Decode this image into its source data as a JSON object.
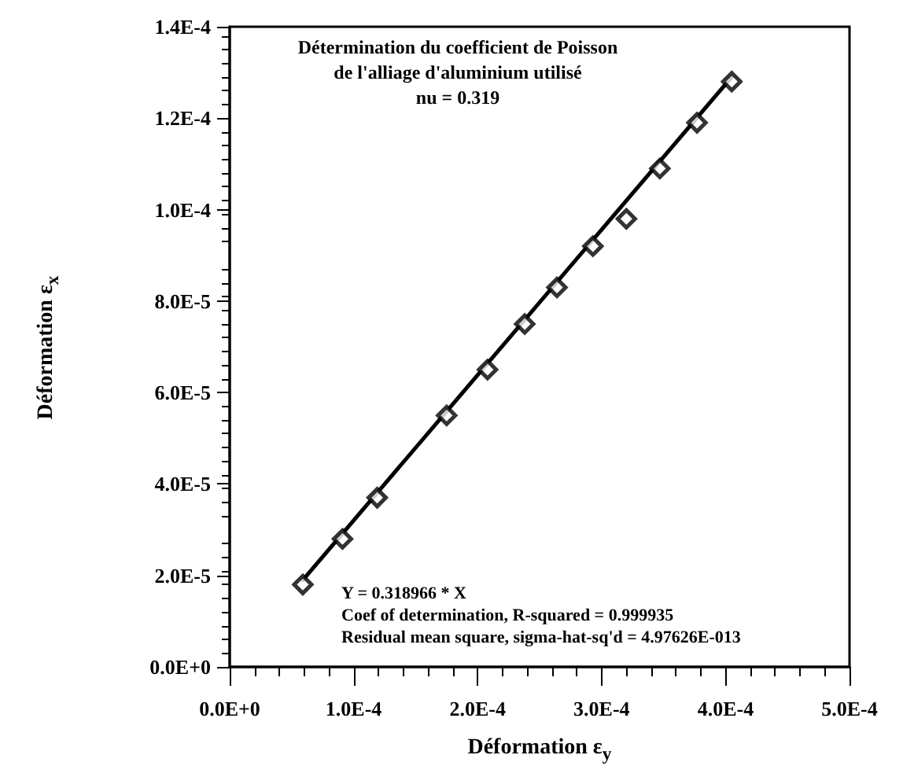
{
  "chart_data": {
    "type": "scatter",
    "title": "Détermination du coefficient de Poisson\nde l'alliage d'aluminium utilisé",
    "subtitle": "nu = 0.319",
    "xlabel": "Déformation ε$_{y}$",
    "ylabel": "Déformation ε$_{x}$",
    "annotations": [
      "Y = 0.318966 * X",
      "Coef of determination, R-squared = 0.999935",
      "Residual mean square, sigma-hat-sq'd = 4.97626E-013"
    ],
    "series": [
      {
        "type": "scatter",
        "color": "#000000",
        "marker": "diamond",
        "x": [
          5.9e-05,
          9.1e-05,
          0.000119,
          0.000175,
          0.000208,
          0.000238,
          0.000264,
          0.000293,
          0.00032,
          0.000347,
          0.000377,
          0.000405
        ],
        "values": [
          1.8e-05,
          2.8e-05,
          3.7e-05,
          5.5e-05,
          6.5e-05,
          7.5e-05,
          8.3e-05,
          9.2e-05,
          9.8e-05,
          0.000109,
          0.000119,
          0.000128
        ]
      },
      {
        "type": "line",
        "color": "#000000",
        "marker": "none",
        "line_style": "solid",
        "x": [
          5.9e-05,
          0.000405
        ],
        "values": [
          1.9e-05,
          0.000129
        ]
      }
    ],
    "xlim": [
      0,
      0.0005
    ],
    "xticks": [
      {
        "value": 0,
        "label": "0.0E+0"
      },
      {
        "value": 0.0001,
        "label": "1.0E-4"
      },
      {
        "value": 0.0002,
        "label": "2.0E-4"
      },
      {
        "value": 0.0003,
        "label": "3.0E-4"
      },
      {
        "value": 0.0004,
        "label": "4.0E-4"
      },
      {
        "value": 0.0005,
        "label": "5.0E-4"
      }
    ],
    "ylim": [
      0,
      0.00014
    ],
    "yticks": [
      {
        "value": 0,
        "label": "0.0E+0"
      },
      {
        "value": 2e-05,
        "label": "2.0E-5"
      },
      {
        "value": 4e-05,
        "label": "4.0E-5"
      },
      {
        "value": 6e-05,
        "label": "6.0E-5"
      },
      {
        "value": 8e-05,
        "label": "8.0E-5"
      },
      {
        "value": 0.0001,
        "label": "1.0E-4"
      },
      {
        "value": 0.00012,
        "label": "1.2E-4"
      },
      {
        "value": 0.00014,
        "label": "1.4E-4"
      }
    ],
    "grid": false
  }
}
